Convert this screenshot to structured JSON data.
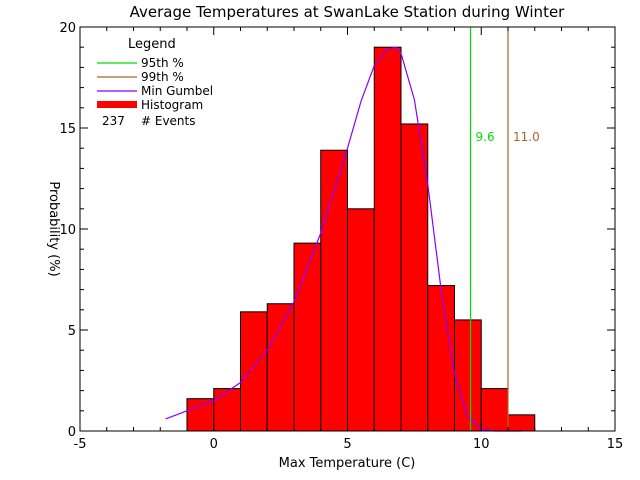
{
  "chart_data": {
    "type": "bar",
    "title": "Average Temperatures at SwanLake Station during Winter",
    "xlabel": "Max Temperature (C)",
    "ylabel": "Probability (%)",
    "xlim": [
      -5,
      15
    ],
    "ylim": [
      0,
      20
    ],
    "xticks": [
      -5,
      0,
      5,
      10,
      15
    ],
    "yticks": [
      0,
      5,
      10,
      15,
      20
    ],
    "bin_width": 1,
    "histogram": {
      "bin_starts": [
        -1,
        0,
        1,
        2,
        3,
        4,
        5,
        6,
        7,
        8,
        9,
        10,
        11
      ],
      "values": [
        1.6,
        2.1,
        5.9,
        6.3,
        9.3,
        13.9,
        11.0,
        19.0,
        15.2,
        7.2,
        5.5,
        2.1,
        0.8
      ],
      "color": "#ff0000"
    },
    "gumbel_curve": {
      "name": "Min Gumbel",
      "color": "#8800ff",
      "x": [
        -1.8,
        -1.0,
        0.0,
        1.0,
        2.0,
        3.0,
        4.0,
        5.0,
        5.5,
        6.0,
        6.5,
        6.8,
        7.0,
        7.5,
        8.0,
        8.5,
        9.0,
        9.5,
        10.0,
        10.5,
        11.0,
        11.5
      ],
      "y": [
        0.6,
        1.0,
        1.5,
        2.4,
        4.0,
        6.4,
        9.8,
        14.0,
        16.3,
        18.1,
        18.9,
        19.0,
        18.7,
        16.4,
        12.2,
        7.0,
        2.8,
        0.7,
        0.1,
        0.0,
        0.0,
        0.0
      ]
    },
    "percentile_lines": [
      {
        "label": "95th %",
        "x": 9.6,
        "value_label": "9.6",
        "color": "#00dd00"
      },
      {
        "label": "99th %",
        "x": 11.0,
        "value_label": "11.0",
        "color": "#aa6622"
      }
    ],
    "legend": {
      "title": "Legend",
      "entries": [
        {
          "label": "95th %",
          "color": "#00dd00",
          "kind": "line"
        },
        {
          "label": "99th %",
          "color": "#aa6622",
          "kind": "line"
        },
        {
          "label": "Min Gumbel",
          "color": "#8800ff",
          "kind": "line"
        },
        {
          "label": "Histogram",
          "color": "#ff0000",
          "kind": "bar"
        }
      ],
      "events_count": "237",
      "events_label": "# Events",
      "placement": "top-left"
    }
  }
}
